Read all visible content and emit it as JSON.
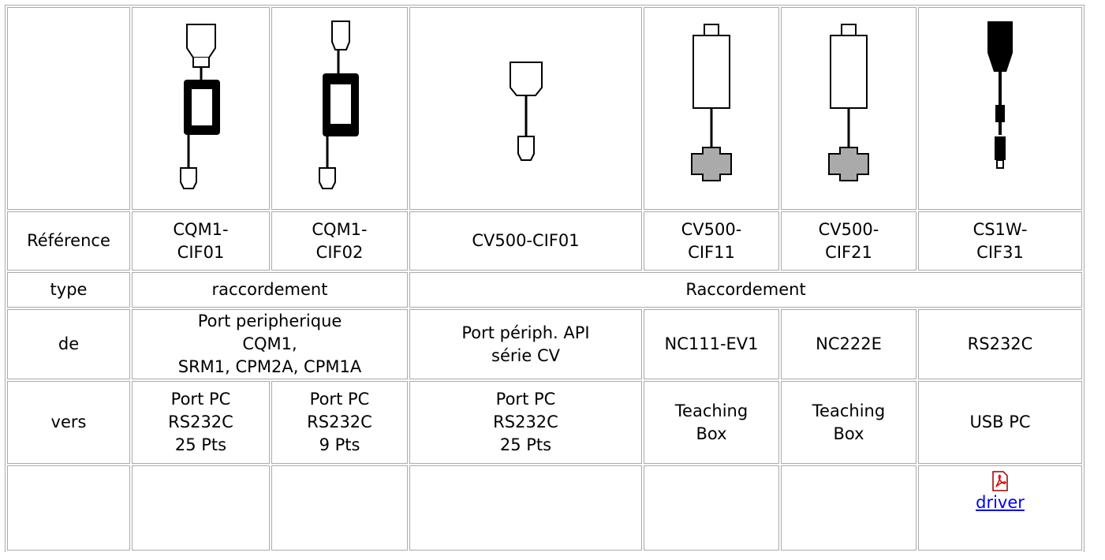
{
  "table": {
    "rows": [
      [
        [
          "Référence"
        ],
        [
          "CQM1-",
          "CIF01"
        ],
        [
          "CQM1-",
          "CIF02"
        ],
        [
          "CV500-CIF01"
        ],
        [
          "CV500-",
          "CIF11"
        ],
        [
          "CV500-",
          "CIF21"
        ],
        [
          "CS1W-",
          "CIF31"
        ]
      ],
      [
        [
          "type"
        ],
        [
          "raccordement"
        ],
        [
          "Raccordement"
        ]
      ],
      [
        [
          "de"
        ],
        [
          "Port peripherique",
          "CQM1,",
          "SRM1, CPM2A, CPM1A"
        ],
        [
          "Port périph. API",
          "série CV"
        ],
        [
          "NC111-EV1"
        ],
        [
          "NC222E"
        ],
        [
          "RS232C"
        ]
      ],
      [
        [
          "vers"
        ],
        [
          "Port PC",
          "RS232C",
          "25 Pts"
        ],
        [
          "Port PC",
          "RS232C",
          "9 Pts"
        ],
        [
          "Port PC",
          "RS232C",
          "25 Pts"
        ],
        [
          "Teaching",
          "Box"
        ],
        [
          "Teaching",
          "Box"
        ],
        [
          "USB PC"
        ]
      ]
    ],
    "driver_link": "driver"
  }
}
